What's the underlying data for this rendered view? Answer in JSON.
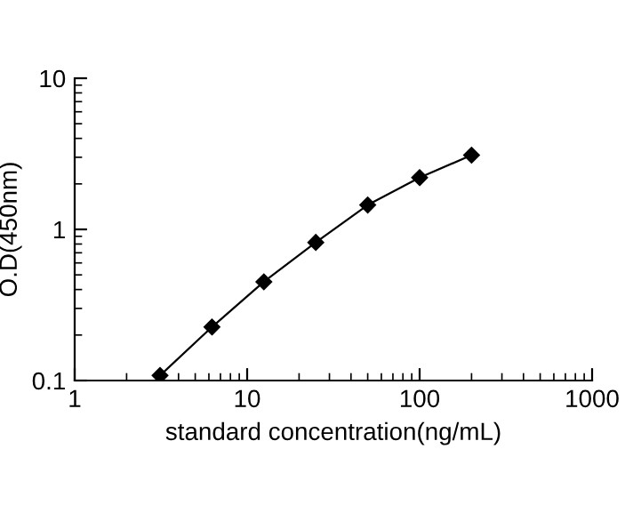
{
  "chart_data": {
    "type": "line",
    "xlabel": "standard concentration(ng/mL)",
    "ylabel": "O.D(450nm)",
    "log": "xy",
    "x": [
      3.125,
      6.25,
      12.5,
      25,
      50,
      100,
      200
    ],
    "series": [
      {
        "color": "#000000",
        "values": [
          0.108,
          0.226,
          0.45,
          0.82,
          1.45,
          2.2,
          3.1
        ]
      }
    ],
    "xlim": [
      1,
      1000
    ],
    "xticks": [
      1,
      10,
      100,
      1000
    ],
    "ylim": [
      0.1,
      10
    ],
    "yticks": [
      0.1,
      1,
      10
    ],
    "marker": "diamond",
    "line_style": "solid",
    "grid": false,
    "legend": false
  }
}
